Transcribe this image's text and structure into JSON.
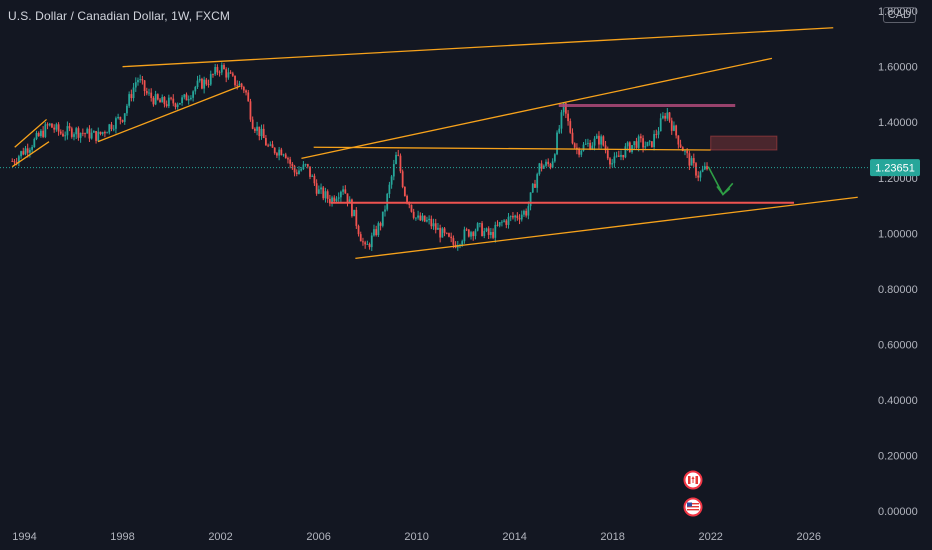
{
  "header": {
    "title": "U.S. Dollar / Canadian Dollar, 1W, FXCM",
    "currency": "CAD"
  },
  "colors": {
    "background": "#131722",
    "up": "#26a69a",
    "down": "#ef5350",
    "trendline": "#f7a21b",
    "green_arrow": "#2e9e45",
    "price_badge": "#26a69a"
  },
  "chart_data": {
    "type": "candlestick",
    "title": "U.S. Dollar / Canadian Dollar, 1W, FXCM",
    "xlabel": "",
    "ylabel": "",
    "xlim": [
      1993.0,
      2028.5
    ],
    "ylim": [
      -0.14,
      1.84
    ],
    "grid": false,
    "x_ticks": [
      "1994",
      "1998",
      "2002",
      "2006",
      "2010",
      "2014",
      "2018",
      "2022",
      "2026"
    ],
    "y_ticks": [
      "1.80000",
      "1.60000",
      "1.40000",
      "1.20000",
      "1.00000",
      "0.80000",
      "0.60000",
      "0.40000",
      "0.20000",
      "0.00000"
    ],
    "last_price": 1.23651,
    "last_price_label": "1.23651",
    "price_path": [
      [
        1993.5,
        1.26
      ],
      [
        1994.0,
        1.3
      ],
      [
        1994.5,
        1.34
      ],
      [
        1995.0,
        1.39
      ],
      [
        1995.5,
        1.36
      ],
      [
        1996.0,
        1.37
      ],
      [
        1996.5,
        1.36
      ],
      [
        1997.0,
        1.35
      ],
      [
        1997.5,
        1.39
      ],
      [
        1998.0,
        1.42
      ],
      [
        1998.6,
        1.56
      ],
      [
        1999.0,
        1.5
      ],
      [
        1999.5,
        1.47
      ],
      [
        2000.0,
        1.47
      ],
      [
        2000.5,
        1.48
      ],
      [
        2001.0,
        1.53
      ],
      [
        2001.5,
        1.55
      ],
      [
        2002.0,
        1.6
      ],
      [
        2002.5,
        1.55
      ],
      [
        2003.0,
        1.52
      ],
      [
        2003.3,
        1.4
      ],
      [
        2003.7,
        1.35
      ],
      [
        2004.0,
        1.3
      ],
      [
        2004.6,
        1.3
      ],
      [
        2005.0,
        1.22
      ],
      [
        2005.5,
        1.24
      ],
      [
        2006.0,
        1.15
      ],
      [
        2006.5,
        1.12
      ],
      [
        2007.0,
        1.17
      ],
      [
        2007.5,
        1.05
      ],
      [
        2007.9,
        0.94
      ],
      [
        2008.3,
        1.0
      ],
      [
        2008.6,
        1.05
      ],
      [
        2009.2,
        1.29
      ],
      [
        2009.5,
        1.15
      ],
      [
        2010.0,
        1.05
      ],
      [
        2010.5,
        1.04
      ],
      [
        2011.0,
        1.0
      ],
      [
        2011.5,
        0.96
      ],
      [
        2012.0,
        1.0
      ],
      [
        2012.5,
        1.02
      ],
      [
        2013.0,
        0.99
      ],
      [
        2013.5,
        1.04
      ],
      [
        2014.0,
        1.06
      ],
      [
        2014.5,
        1.08
      ],
      [
        2015.0,
        1.24
      ],
      [
        2015.5,
        1.25
      ],
      [
        2016.0,
        1.45
      ],
      [
        2016.5,
        1.3
      ],
      [
        2017.0,
        1.32
      ],
      [
        2017.5,
        1.34
      ],
      [
        2018.0,
        1.25
      ],
      [
        2018.5,
        1.3
      ],
      [
        2019.0,
        1.33
      ],
      [
        2019.5,
        1.31
      ],
      [
        2020.2,
        1.44
      ],
      [
        2020.5,
        1.37
      ],
      [
        2021.0,
        1.28
      ],
      [
        2021.5,
        1.21
      ],
      [
        2021.9,
        1.24
      ]
    ],
    "trendlines": [
      {
        "name": "upper-channel",
        "points": [
          [
            1998.0,
            1.6
          ],
          [
            2027.0,
            1.74
          ]
        ]
      },
      {
        "name": "rising-resistance",
        "points": [
          [
            2005.3,
            1.27
          ],
          [
            2024.5,
            1.63
          ]
        ]
      },
      {
        "name": "rising-support",
        "points": [
          [
            2007.5,
            0.91
          ],
          [
            2028.0,
            1.13
          ]
        ]
      },
      {
        "name": "1999-2002-support",
        "points": [
          [
            1997.0,
            1.33
          ],
          [
            2002.8,
            1.53
          ]
        ]
      },
      {
        "name": "mid-range",
        "points": [
          [
            2005.8,
            1.31
          ],
          [
            2022.0,
            1.3
          ]
        ]
      },
      {
        "name": "1994-channel-low",
        "points": [
          [
            1993.5,
            1.24
          ],
          [
            1995.0,
            1.33
          ]
        ]
      },
      {
        "name": "1994-channel-high",
        "points": [
          [
            1993.6,
            1.31
          ],
          [
            1994.9,
            1.41
          ]
        ]
      }
    ],
    "support_line": {
      "points": [
        [
          2006.5,
          1.11
        ],
        [
          2025.4,
          1.11
        ]
      ],
      "color": "#ef5350"
    },
    "resistance_line": {
      "points": [
        [
          2015.8,
          1.46
        ],
        [
          2023.0,
          1.46
        ]
      ],
      "color": "#b04a7a"
    },
    "zones": [
      {
        "x": [
          2022.0,
          2024.7
        ],
        "y": [
          1.3,
          1.35
        ],
        "color": "#ef5350"
      }
    ],
    "projection": [
      [
        2021.9,
        1.24
      ],
      [
        2022.5,
        1.14
      ],
      [
        2022.9,
        1.18
      ]
    ]
  }
}
